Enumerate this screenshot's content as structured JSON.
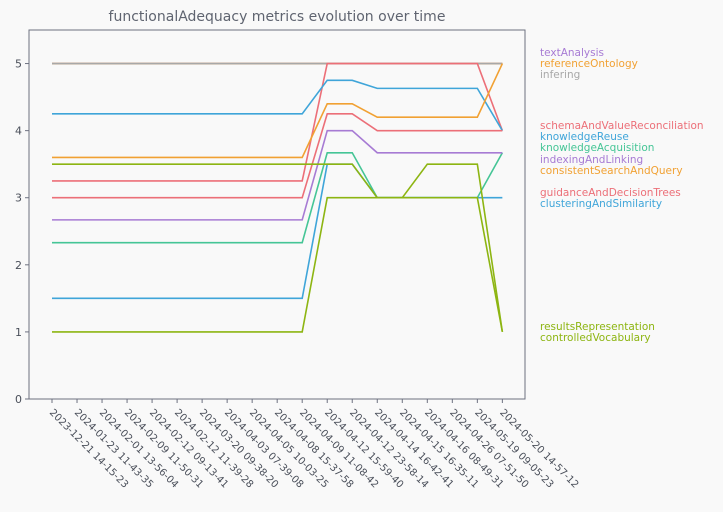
{
  "chart_data": {
    "type": "line",
    "title": "functionalAdequacy metrics evolution over time",
    "xlabel": "",
    "ylabel": "",
    "ylim": [
      0,
      5.5
    ],
    "yticks": [
      0,
      1,
      2,
      3,
      4,
      5
    ],
    "grid": false,
    "legend": "right-side labels",
    "x": [
      "2023-12-21 14-15-23",
      "2024-01-23 11-43-35",
      "2024-02-01 13-56-04",
      "2024-02-09 11-50-31",
      "2024-02-12 09-13-41",
      "2024-02-12 11-39-28",
      "2024-03-20 09-38-20",
      "2024-04-03 07-39-08",
      "2024-04-05 10-03-25",
      "2024-04-08 15-37-58",
      "2024-04-09 11-08-42",
      "2024-04-12 15-59-40",
      "2024-04-12 23-58-14",
      "2024-04-14 16-42-41",
      "2024-04-15 16-35-11",
      "2024-04-16 08-49-31",
      "2024-04-26 07-51-50",
      "2024-05-19 09-05-23",
      "2024-05-20 14-57-12"
    ],
    "series": [
      {
        "name": "textAnalysis",
        "color": "#a77bd4",
        "values": [
          5,
          5,
          5,
          5,
          5,
          5,
          5,
          5,
          5,
          5,
          5,
          5,
          5,
          5,
          5,
          5,
          5,
          5,
          5
        ]
      },
      {
        "name": "referenceOntology",
        "color": "#f1a133",
        "values": [
          5,
          5,
          5,
          5,
          5,
          5,
          5,
          5,
          5,
          5,
          5,
          5,
          5,
          5,
          5,
          5,
          5,
          5,
          5
        ]
      },
      {
        "name": "infering",
        "color": "#a8a8a8",
        "values": [
          5,
          5,
          5,
          5,
          5,
          5,
          5,
          5,
          5,
          5,
          5,
          5,
          5,
          5,
          5,
          5,
          5,
          5,
          5
        ]
      },
      {
        "name": "schemaAndValueReconciliation",
        "color": "#ec6f78",
        "values": [
          3.25,
          3.25,
          3.25,
          3.25,
          3.25,
          3.25,
          3.25,
          3.25,
          3.25,
          3.25,
          3.25,
          5,
          5,
          5,
          5,
          5,
          5,
          5,
          4
        ]
      },
      {
        "name": "knowledgeReuse",
        "color": "#3fa5d9",
        "values": [
          4.25,
          4.25,
          4.25,
          4.25,
          4.25,
          4.25,
          4.25,
          4.25,
          4.25,
          4.25,
          4.25,
          4.75,
          4.75,
          4.63,
          4.63,
          4.63,
          4.63,
          4.63,
          4
        ]
      },
      {
        "name": "knowledgeAcquisition",
        "color": "#45c596",
        "values": [
          2.33,
          2.33,
          2.33,
          2.33,
          2.33,
          2.33,
          2.33,
          2.33,
          2.33,
          2.33,
          2.33,
          3.67,
          3.67,
          3,
          3,
          3,
          3,
          3,
          3.67
        ]
      },
      {
        "name": "indexingAndLinking",
        "color": "#a77bd4",
        "values": [
          2.67,
          2.67,
          2.67,
          2.67,
          2.67,
          2.67,
          2.67,
          2.67,
          2.67,
          2.67,
          2.67,
          4,
          4,
          3.67,
          3.67,
          3.67,
          3.67,
          3.67,
          3.67
        ]
      },
      {
        "name": "consistentSearchAndQuery",
        "color": "#f1a133",
        "values": [
          3.6,
          3.6,
          3.6,
          3.6,
          3.6,
          3.6,
          3.6,
          3.6,
          3.6,
          3.6,
          3.6,
          4.4,
          4.4,
          4.2,
          4.2,
          4.2,
          4.2,
          4.2,
          5
        ]
      },
      {
        "name": "guidanceAndDecisionTrees",
        "color": "#ec6f78",
        "values": [
          3,
          3,
          3,
          3,
          3,
          3,
          3,
          3,
          3,
          3,
          3,
          4.25,
          4.25,
          4,
          4,
          4,
          4,
          4,
          4
        ]
      },
      {
        "name": "clusteringAndSimilarity",
        "color": "#3fa5d9",
        "values": [
          1.5,
          1.5,
          1.5,
          1.5,
          1.5,
          1.5,
          1.5,
          1.5,
          1.5,
          1.5,
          1.5,
          3.5,
          3.5,
          3,
          3,
          3,
          3,
          3,
          3
        ]
      },
      {
        "name": "resultsRepresentation",
        "color": "#8db512",
        "values": [
          3.5,
          3.5,
          3.5,
          3.5,
          3.5,
          3.5,
          3.5,
          3.5,
          3.5,
          3.5,
          3.5,
          3.5,
          3.5,
          3,
          3,
          3,
          3,
          3,
          1
        ]
      },
      {
        "name": "controlledVocabulary",
        "color": "#8db512",
        "values": [
          1,
          1,
          1,
          1,
          1,
          1,
          1,
          1,
          1,
          1,
          1,
          3,
          3,
          3,
          3,
          3.5,
          3.5,
          3.5,
          1
        ]
      }
    ]
  }
}
